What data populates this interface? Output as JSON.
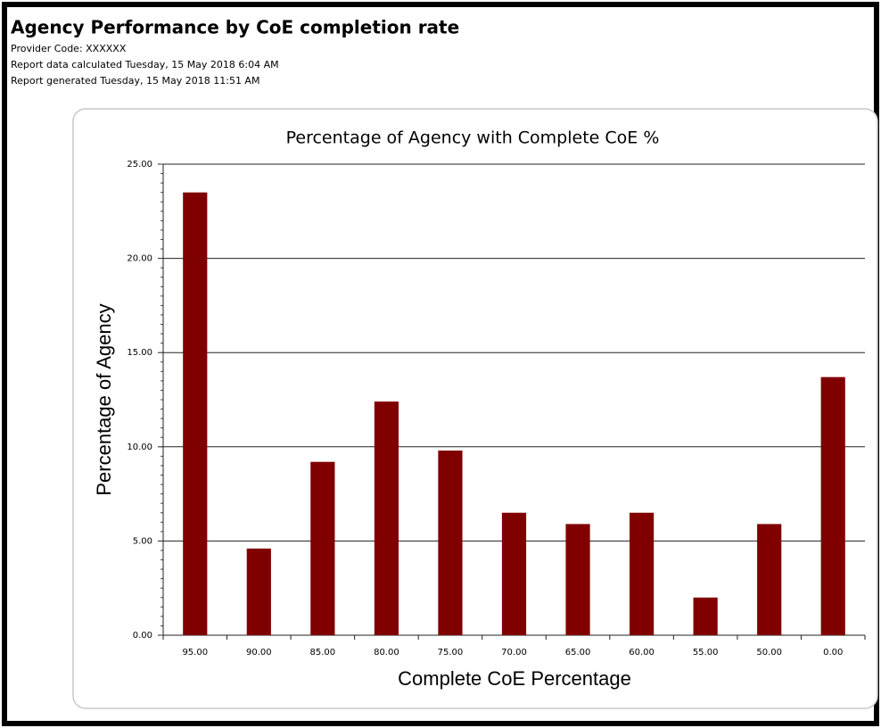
{
  "header": {
    "title": "Agency Performance by CoE completion rate",
    "lines": [
      "Provider Code: XXXXXX",
      "Report data calculated Tuesday, 15 May 2018 6:04 AM",
      "Report generated Tuesday, 15 May 2018 11:51 AM"
    ]
  },
  "chart_data": {
    "type": "bar",
    "title": "Percentage of Agency with Complete CoE %",
    "x_label": "Complete CoE Percentage",
    "y_label": "Percentage of Agency",
    "categories": [
      "95.00",
      "90.00",
      "85.00",
      "80.00",
      "75.00",
      "70.00",
      "65.00",
      "60.00",
      "55.00",
      "50.00",
      "0.00"
    ],
    "values": [
      23.5,
      4.6,
      9.2,
      12.4,
      9.8,
      6.5,
      5.9,
      6.5,
      2.0,
      5.9,
      13.7
    ],
    "color": "#800000",
    "ylim": [
      0,
      25
    ],
    "yticks": [
      {
        "value": 0,
        "label": "0.00"
      },
      {
        "value": 5,
        "label": "5.00"
      },
      {
        "value": 10,
        "label": "10.00"
      },
      {
        "value": 15,
        "label": "15.00"
      },
      {
        "value": 20,
        "label": "20.00"
      },
      {
        "value": 25,
        "label": "25.00"
      }
    ],
    "grid": true
  }
}
